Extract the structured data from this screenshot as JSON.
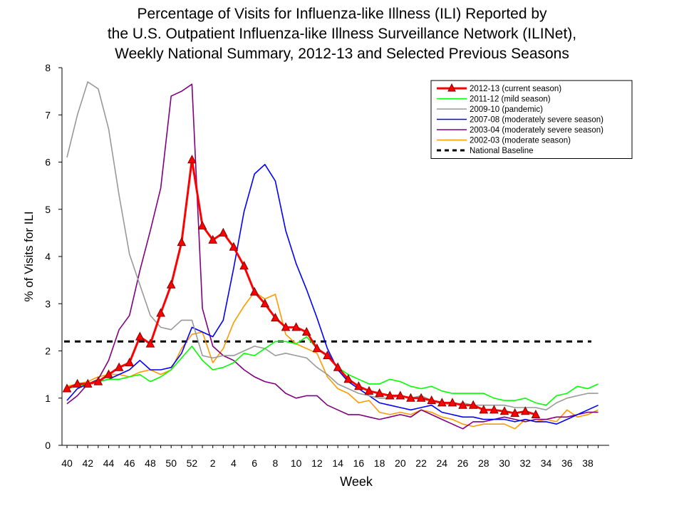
{
  "chart_data": {
    "type": "line",
    "title_lines": [
      "Percentage of Visits for Influenza-like Illness (ILI) Reported by",
      "the U.S. Outpatient Influenza-like Illness Surveillance Network (ILINet),",
      "Weekly National Summary, 2012-13 and Selected Previous Seasons"
    ],
    "xlabel": "Week",
    "ylabel": "% of Visits for ILI",
    "ylim": [
      0,
      8
    ],
    "yticks": [
      0,
      1,
      2,
      3,
      4,
      5,
      6,
      7,
      8
    ],
    "x_weeks": [
      40,
      41,
      42,
      43,
      44,
      45,
      46,
      47,
      48,
      49,
      50,
      51,
      52,
      1,
      2,
      3,
      4,
      5,
      6,
      7,
      8,
      9,
      10,
      11,
      12,
      13,
      14,
      15,
      16,
      17,
      18,
      19,
      20,
      21,
      22,
      23,
      24,
      25,
      26,
      27,
      28,
      29,
      30,
      31,
      32,
      33,
      34,
      35,
      36,
      37,
      38,
      39
    ],
    "xtick_labels": [
      "40",
      "42",
      "44",
      "46",
      "48",
      "50",
      "52",
      "2",
      "4",
      "6",
      "8",
      "10",
      "12",
      "14",
      "16",
      "18",
      "20",
      "22",
      "24",
      "26",
      "28",
      "30",
      "32",
      "34",
      "36",
      "38"
    ],
    "grid": false,
    "legend_position": "top-right",
    "baseline": {
      "name": "National Baseline",
      "value": 2.2,
      "color": "#000000"
    },
    "series": [
      {
        "name": "2012-13 (current season)",
        "color": "#ff0000",
        "marker": "triangle",
        "values": [
          1.2,
          1.3,
          1.3,
          1.35,
          1.5,
          1.65,
          1.75,
          2.3,
          2.15,
          2.8,
          3.4,
          4.3,
          6.05,
          4.65,
          4.35,
          4.5,
          4.2,
          3.8,
          3.25,
          3.0,
          2.7,
          2.5,
          2.5,
          2.4,
          2.05,
          1.9,
          1.65,
          1.4,
          1.25,
          1.15,
          1.1,
          1.05,
          1.05,
          1.0,
          1.0,
          0.95,
          0.9,
          0.9,
          0.85,
          0.85,
          0.75,
          0.75,
          0.72,
          0.68,
          0.72,
          0.65
        ]
      },
      {
        "name": "2011-12 (mild season)",
        "color": "#00ff00",
        "values": [
          1.2,
          1.25,
          1.3,
          1.35,
          1.4,
          1.4,
          1.45,
          1.5,
          1.35,
          1.45,
          1.6,
          1.85,
          2.1,
          1.8,
          1.6,
          1.65,
          1.75,
          1.95,
          1.9,
          2.05,
          2.2,
          2.2,
          2.15,
          2.3,
          2.05,
          1.9,
          1.65,
          1.5,
          1.4,
          1.3,
          1.3,
          1.4,
          1.35,
          1.25,
          1.2,
          1.25,
          1.15,
          1.1,
          1.1,
          1.1,
          1.1,
          1.0,
          0.95,
          0.95,
          1.0,
          0.9,
          0.85,
          1.05,
          1.1,
          1.25,
          1.2,
          1.3
        ]
      },
      {
        "name": "2009-10 (pandemic)",
        "color": "#999999",
        "values": [
          6.1,
          7.0,
          7.7,
          7.55,
          6.7,
          5.3,
          4.05,
          3.4,
          2.75,
          2.5,
          2.45,
          2.65,
          2.65,
          1.9,
          1.85,
          1.9,
          1.9,
          2.0,
          2.1,
          2.05,
          1.9,
          1.95,
          1.9,
          1.85,
          1.65,
          1.5,
          1.3,
          1.2,
          1.1,
          1.05,
          1.0,
          1.0,
          1.05,
          1.0,
          1.05,
          0.95,
          0.9,
          0.85,
          0.9,
          0.85,
          0.85,
          0.85,
          0.85,
          0.8,
          0.8,
          0.8,
          0.75,
          0.9,
          1.0,
          1.05,
          1.1,
          1.1
        ]
      },
      {
        "name": "2007-08 (moderately severe season)",
        "color": "#0000ff",
        "values": [
          0.95,
          1.2,
          1.3,
          1.35,
          1.4,
          1.5,
          1.6,
          1.8,
          1.6,
          1.6,
          1.65,
          1.95,
          2.5,
          2.4,
          2.3,
          2.65,
          3.75,
          4.95,
          5.75,
          5.95,
          5.6,
          4.55,
          3.85,
          3.3,
          2.7,
          2.05,
          1.6,
          1.35,
          1.2,
          1.05,
          0.9,
          0.85,
          0.8,
          0.75,
          0.8,
          0.85,
          0.7,
          0.65,
          0.6,
          0.6,
          0.55,
          0.55,
          0.55,
          0.5,
          0.55,
          0.5,
          0.5,
          0.45,
          0.55,
          0.65,
          0.75,
          0.85
        ]
      },
      {
        "name": "2003-04 (moderately severe season)",
        "color": "#800080",
        "values": [
          0.88,
          1.05,
          1.3,
          1.4,
          1.8,
          2.45,
          2.75,
          3.7,
          4.55,
          5.45,
          7.4,
          7.5,
          7.65,
          2.9,
          2.1,
          1.9,
          1.8,
          1.6,
          1.45,
          1.35,
          1.3,
          1.1,
          1.0,
          1.05,
          1.05,
          0.85,
          0.75,
          0.65,
          0.65,
          0.6,
          0.55,
          0.6,
          0.65,
          0.6,
          0.75,
          0.65,
          0.55,
          0.45,
          0.35,
          0.5,
          0.5,
          0.55,
          0.6,
          0.55,
          0.5,
          0.55,
          0.55,
          0.6,
          0.6,
          0.65,
          0.7,
          0.7
        ]
      },
      {
        "name": "2002-03 (moderate season)",
        "color": "#ff9900",
        "values": [
          1.25,
          1.3,
          1.35,
          1.45,
          1.5,
          1.5,
          1.45,
          1.55,
          1.6,
          1.5,
          1.6,
          2.05,
          2.35,
          2.4,
          1.75,
          2.05,
          2.6,
          2.95,
          3.25,
          3.1,
          3.2,
          2.35,
          2.15,
          2.05,
          1.95,
          1.45,
          1.2,
          1.1,
          0.9,
          0.95,
          0.7,
          0.65,
          0.7,
          0.65,
          0.75,
          0.7,
          0.6,
          0.55,
          0.45,
          0.4,
          0.45,
          0.45,
          0.45,
          0.35,
          0.55,
          0.5,
          0.55,
          0.5,
          0.75,
          0.6,
          0.65,
          0.75
        ]
      }
    ]
  }
}
